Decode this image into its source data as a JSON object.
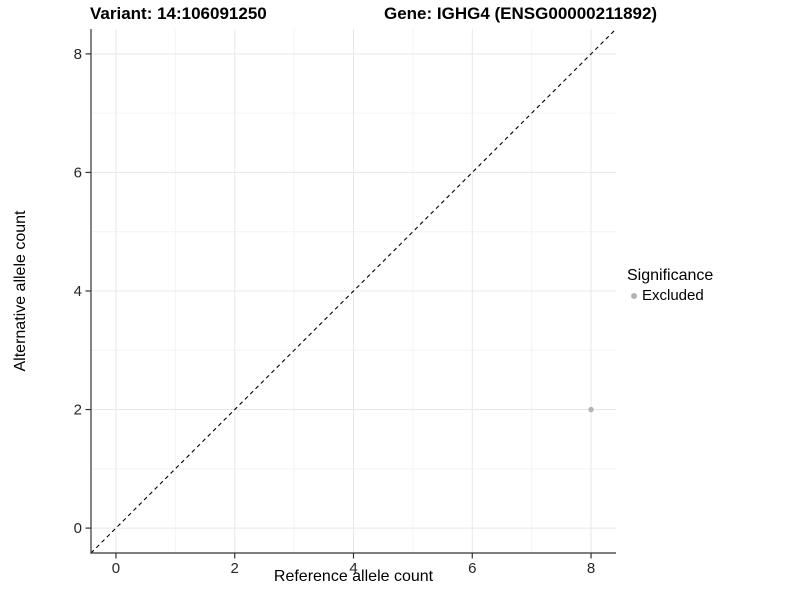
{
  "figure": {
    "title_variant": "Variant: 14:106091250",
    "title_gene": "Gene: IGHG4 (ENSG00000211892)"
  },
  "chart_data": {
    "type": "scatter",
    "title_left": "Variant: 14:106091250",
    "title_right": "Gene: IGHG4 (ENSG00000211892)",
    "xlabel": "Reference allele count",
    "ylabel": "Alternative allele count",
    "xlim": [
      -0.42,
      8.42
    ],
    "ylim": [
      -0.42,
      8.42
    ],
    "x_ticks": [
      0,
      2,
      4,
      6,
      8
    ],
    "y_ticks": [
      0,
      2,
      4,
      6,
      8
    ],
    "x_minor_ticks": [
      1,
      3,
      5,
      7
    ],
    "y_minor_ticks": [
      1,
      3,
      5,
      7
    ],
    "grid": "major and minor, light gray on white",
    "identity_line": {
      "type": "y=x",
      "style": "dashed",
      "color": "#000000"
    },
    "series": [
      {
        "name": "Excluded",
        "color": "#b3b3b3",
        "points": [
          {
            "x": 8,
            "y": 2
          }
        ]
      }
    ],
    "legend": {
      "title": "Significance",
      "position": "right",
      "entries": [
        {
          "label": "Excluded",
          "color": "#b3b3b3"
        }
      ]
    },
    "theme": {
      "background": "#ffffff",
      "grid_major": "#e8e8e8",
      "grid_minor": "#f4f4f4",
      "axis_line": "#333333",
      "tick_color": "#333333",
      "tick_label_color": "#262626"
    }
  }
}
